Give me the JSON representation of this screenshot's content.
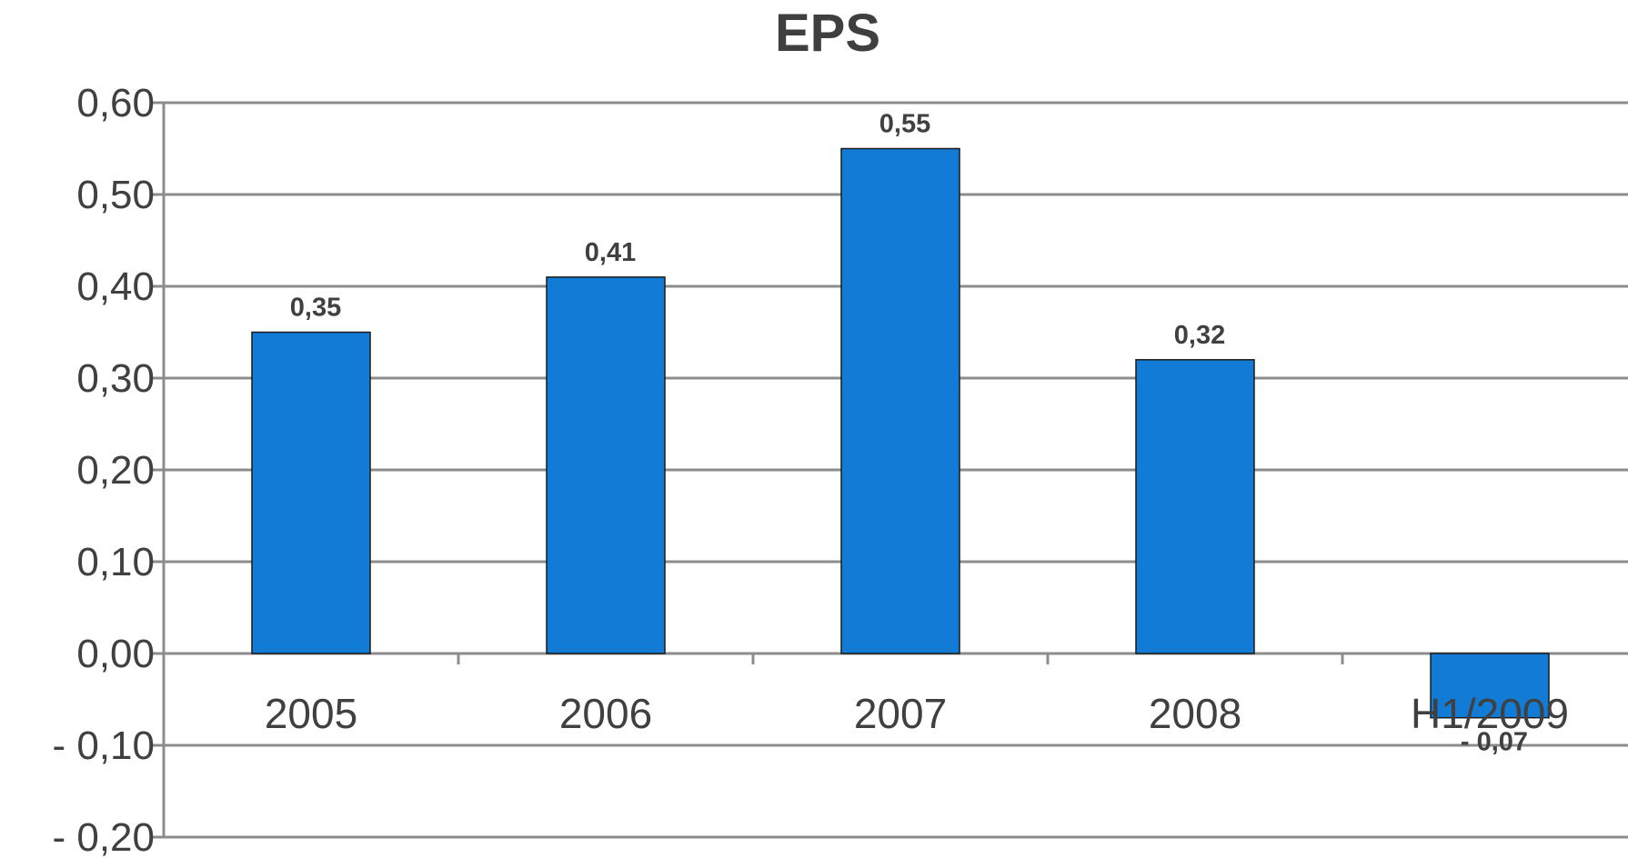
{
  "chart_data": {
    "type": "bar",
    "title": "EPS",
    "categories": [
      "2005",
      "2006",
      "2007",
      "2008",
      "H1/2009"
    ],
    "values": [
      0.35,
      0.41,
      0.55,
      0.32,
      -0.07
    ],
    "data_labels": [
      "0,35",
      "0,41",
      "0,55",
      "0,32",
      "- 0,07"
    ],
    "ylim": [
      -0.2,
      0.6
    ],
    "yticks": [
      0.6,
      0.5,
      0.4,
      0.3,
      0.2,
      0.1,
      0.0,
      -0.1,
      -0.2
    ],
    "ytick_labels": [
      "0,60",
      "0,50",
      "0,40",
      "0,30",
      "0,20",
      "0,10",
      "0,00",
      "- 0,10",
      "- 0,20"
    ],
    "xlabel": "",
    "ylabel": "",
    "grid": true,
    "bar_color": "#127bd6"
  }
}
